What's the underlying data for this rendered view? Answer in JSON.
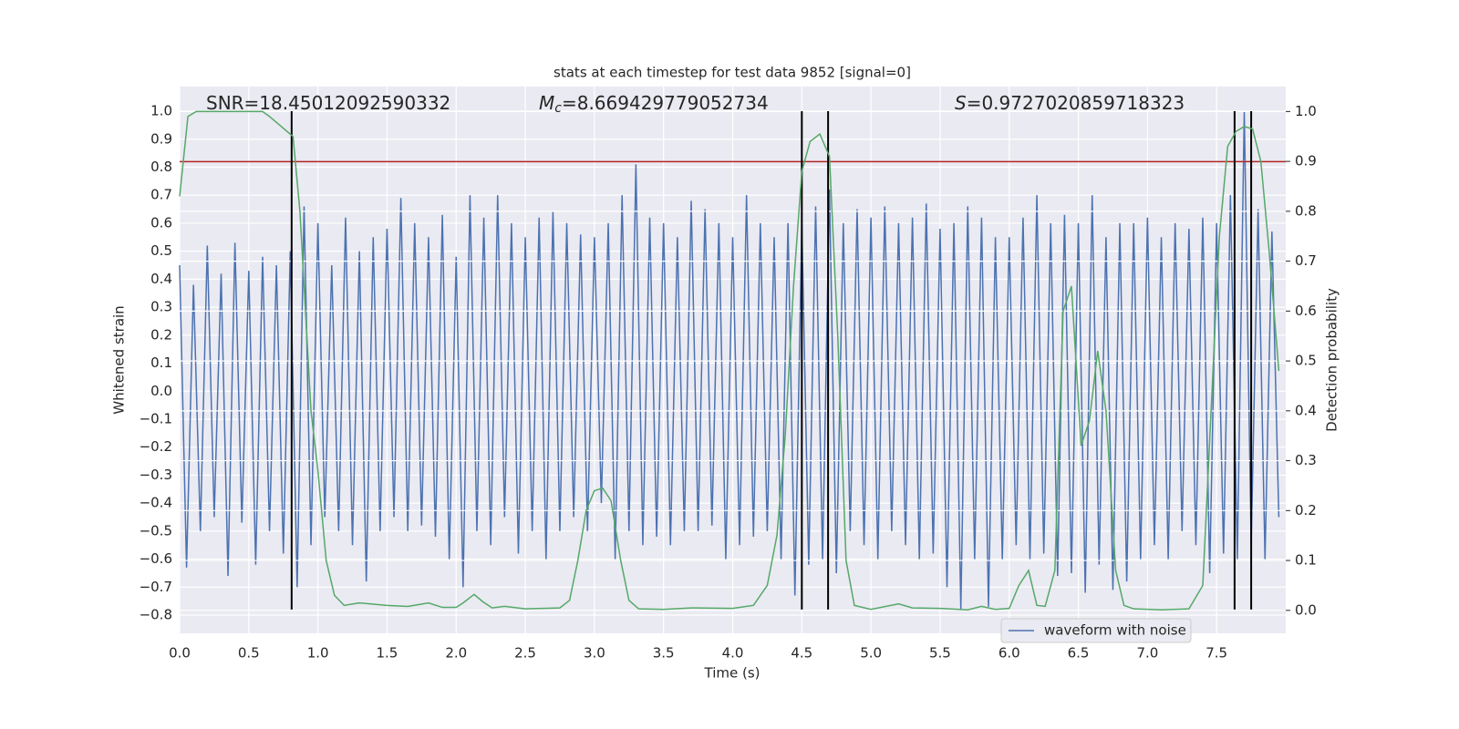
{
  "chart_data": {
    "type": "line",
    "title": "stats at each timestep for test data 9852 [signal=0]",
    "xlabel": "Time (s)",
    "ylabel": "Whitened strain",
    "y2label": "Detection probability",
    "xlim": [
      0,
      8.0
    ],
    "ylim": [
      -0.865,
      1.088
    ],
    "y2lim": [
      -0.046,
      1.05
    ],
    "xticks": [
      {
        "value": 0,
        "label": "0.0"
      },
      {
        "value": 0.5,
        "label": "0.5"
      },
      {
        "value": 1,
        "label": "1.0"
      },
      {
        "value": 1.5,
        "label": "1.5"
      },
      {
        "value": 2,
        "label": "2.0"
      },
      {
        "value": 2.5,
        "label": "2.5"
      },
      {
        "value": 3,
        "label": "3.0"
      },
      {
        "value": 3.5,
        "label": "3.5"
      },
      {
        "value": 4,
        "label": "4.0"
      },
      {
        "value": 4.5,
        "label": "4.5"
      },
      {
        "value": 5,
        "label": "5.0"
      },
      {
        "value": 5.5,
        "label": "5.5"
      },
      {
        "value": 6,
        "label": "6.0"
      },
      {
        "value": 6.5,
        "label": "6.5"
      },
      {
        "value": 7,
        "label": "7.0"
      },
      {
        "value": 7.5,
        "label": "7.5"
      }
    ],
    "yticks": [
      {
        "value": -0.8,
        "label": "−0.8"
      },
      {
        "value": -0.7,
        "label": "−0.7"
      },
      {
        "value": -0.6,
        "label": "−0.6"
      },
      {
        "value": -0.5,
        "label": "−0.5"
      },
      {
        "value": -0.4,
        "label": "−0.4"
      },
      {
        "value": -0.3,
        "label": "−0.3"
      },
      {
        "value": -0.2,
        "label": "−0.2"
      },
      {
        "value": -0.1,
        "label": "−0.1"
      },
      {
        "value": 0,
        "label": "0.0"
      },
      {
        "value": 0.1,
        "label": "0.1"
      },
      {
        "value": 0.2,
        "label": "0.2"
      },
      {
        "value": 0.3,
        "label": "0.3"
      },
      {
        "value": 0.4,
        "label": "0.4"
      },
      {
        "value": 0.5,
        "label": "0.5"
      },
      {
        "value": 0.6,
        "label": "0.6"
      },
      {
        "value": 0.7,
        "label": "0.7"
      },
      {
        "value": 0.8,
        "label": "0.8"
      },
      {
        "value": 0.9,
        "label": "0.9"
      },
      {
        "value": 1,
        "label": "1.0"
      }
    ],
    "y2ticks": [
      {
        "value": 0,
        "label": "0.0"
      },
      {
        "value": 0.1,
        "label": "0.1"
      },
      {
        "value": 0.2,
        "label": "0.2"
      },
      {
        "value": 0.3,
        "label": "0.3"
      },
      {
        "value": 0.4,
        "label": "0.4"
      },
      {
        "value": 0.5,
        "label": "0.5"
      },
      {
        "value": 0.6,
        "label": "0.6"
      },
      {
        "value": 0.7,
        "label": "0.7"
      },
      {
        "value": 0.8,
        "label": "0.8"
      },
      {
        "value": 0.9,
        "label": "0.9"
      },
      {
        "value": 1,
        "label": "1.0"
      }
    ],
    "grid": true,
    "legend": "lower right",
    "series": [
      {
        "name": "waveform with noise",
        "color": "#4c72b0",
        "x": [
          0,
          0.05,
          0.1,
          0.15,
          0.2,
          0.25,
          0.3,
          0.35,
          0.4,
          0.45,
          0.5,
          0.55,
          0.6,
          0.65,
          0.7,
          0.75,
          0.8,
          0.85,
          0.9,
          0.95,
          1,
          1.05,
          1.1,
          1.15,
          1.2,
          1.25,
          1.3,
          1.35,
          1.4,
          1.45,
          1.5,
          1.55,
          1.6,
          1.65,
          1.7,
          1.75,
          1.8,
          1.85,
          1.9,
          1.95,
          2,
          2.05,
          2.1,
          2.15,
          2.2,
          2.25,
          2.3,
          2.35,
          2.4,
          2.45,
          2.5,
          2.55,
          2.6,
          2.65,
          2.7,
          2.75,
          2.8,
          2.85,
          2.9,
          2.95,
          3,
          3.05,
          3.1,
          3.15,
          3.2,
          3.25,
          3.3,
          3.35,
          3.4,
          3.45,
          3.5,
          3.55,
          3.6,
          3.65,
          3.7,
          3.75,
          3.8,
          3.85,
          3.9,
          3.95,
          4,
          4.05,
          4.1,
          4.15,
          4.2,
          4.25,
          4.3,
          4.35,
          4.4,
          4.45,
          4.5,
          4.55,
          4.6,
          4.65,
          4.7,
          4.75,
          4.8,
          4.85,
          4.9,
          4.95,
          5,
          5.05,
          5.1,
          5.15,
          5.2,
          5.25,
          5.3,
          5.35,
          5.4,
          5.45,
          5.5,
          5.55,
          5.6,
          5.65,
          5.7,
          5.75,
          5.8,
          5.85,
          5.9,
          5.95,
          6,
          6.05,
          6.1,
          6.15,
          6.2,
          6.25,
          6.3,
          6.35,
          6.4,
          6.45,
          6.5,
          6.55,
          6.6,
          6.65,
          6.7,
          6.75,
          6.8,
          6.85,
          6.9,
          6.95,
          7,
          7.05,
          7.1,
          7.15,
          7.2,
          7.25,
          7.3,
          7.35,
          7.4,
          7.45,
          7.5,
          7.55,
          7.6,
          7.65,
          7.7,
          7.75,
          7.8,
          7.85,
          7.9,
          7.95
        ],
        "values": [
          0.45,
          -0.63,
          0.38,
          -0.5,
          0.52,
          -0.45,
          0.42,
          -0.66,
          0.53,
          -0.47,
          0.43,
          -0.62,
          0.48,
          -0.5,
          0.45,
          -0.58,
          0.5,
          -0.7,
          0.66,
          -0.55,
          0.6,
          -0.45,
          0.45,
          -0.5,
          0.62,
          -0.55,
          0.5,
          -0.68,
          0.55,
          -0.5,
          0.58,
          -0.45,
          0.69,
          -0.5,
          0.6,
          -0.48,
          0.55,
          -0.52,
          0.63,
          -0.6,
          0.48,
          -0.7,
          0.7,
          -0.5,
          0.62,
          -0.55,
          0.7,
          -0.45,
          0.6,
          -0.58,
          0.55,
          -0.5,
          0.62,
          -0.6,
          0.64,
          -0.5,
          0.6,
          -0.45,
          0.56,
          -0.5,
          0.55,
          -0.4,
          0.6,
          -0.6,
          0.7,
          -0.5,
          0.81,
          -0.55,
          0.62,
          -0.52,
          0.6,
          -0.55,
          0.55,
          -0.5,
          0.68,
          -0.5,
          0.65,
          -0.48,
          0.6,
          -0.6,
          0.55,
          -0.55,
          0.7,
          -0.52,
          0.6,
          -0.5,
          0.55,
          -0.6,
          0.6,
          -0.73,
          0.6,
          -0.62,
          0.66,
          -0.6,
          0.72,
          -0.65,
          0.6,
          -0.5,
          0.65,
          -0.55,
          0.62,
          -0.6,
          0.66,
          -0.5,
          0.6,
          -0.55,
          0.62,
          -0.6,
          0.67,
          -0.58,
          0.58,
          -0.7,
          0.6,
          -0.78,
          0.66,
          -0.6,
          0.62,
          -0.77,
          0.55,
          -0.6,
          0.55,
          -0.55,
          0.62,
          -0.6,
          0.7,
          -0.58,
          0.6,
          -0.66,
          0.63,
          -0.65,
          0.6,
          -0.72,
          0.7,
          -0.62,
          0.55,
          -0.71,
          0.6,
          -0.68,
          0.6,
          -0.6,
          0.62,
          -0.55,
          0.55,
          -0.6,
          0.6,
          -0.5,
          0.58,
          -0.55,
          0.62,
          -0.65,
          0.6,
          -0.58,
          0.7,
          -0.6,
          1.0,
          -0.55,
          0.65,
          -0.6,
          0.57,
          -0.45
        ]
      },
      {
        "color": "#55a868",
        "axis": "y2",
        "x": [
          0,
          0.06,
          0.12,
          0.6,
          0.65,
          0.82,
          0.87,
          0.95,
          1,
          1.06,
          1.12,
          1.19,
          1.3,
          1.5,
          1.65,
          1.8,
          1.9,
          2,
          2.05,
          2.13,
          2.19,
          2.26,
          2.35,
          2.5,
          2.75,
          2.82,
          2.88,
          2.94,
          3,
          3.06,
          3.12,
          3.19,
          3.25,
          3.32,
          3.5,
          3.7,
          4,
          4.15,
          4.25,
          4.32,
          4.38,
          4.44,
          4.5,
          4.56,
          4.63,
          4.7,
          4.76,
          4.82,
          4.88,
          5,
          5.2,
          5.3,
          5.5,
          5.7,
          5.8,
          5.9,
          6,
          6.07,
          6.14,
          6.2,
          6.26,
          6.33,
          6.39,
          6.45,
          6.52,
          6.58,
          6.64,
          6.7,
          6.77,
          6.83,
          6.9,
          7.1,
          7.3,
          7.4,
          7.46,
          7.52,
          7.58,
          7.64,
          7.7,
          7.76,
          7.82,
          7.88,
          7.95
        ],
        "values": [
          0.83,
          0.99,
          1,
          1,
          0.99,
          0.95,
          0.8,
          0.4,
          0.28,
          0.1,
          0.03,
          0.01,
          0.015,
          0.01,
          0.008,
          0.015,
          0.006,
          0.006,
          0.015,
          0.032,
          0.018,
          0.005,
          0.008,
          0.003,
          0.005,
          0.02,
          0.1,
          0.2,
          0.24,
          0.245,
          0.22,
          0.1,
          0.02,
          0.003,
          0.002,
          0.005,
          0.004,
          0.01,
          0.05,
          0.15,
          0.35,
          0.65,
          0.88,
          0.94,
          0.955,
          0.91,
          0.55,
          0.1,
          0.01,
          0.002,
          0.013,
          0.005,
          0.004,
          0.001,
          0.008,
          0.002,
          0.004,
          0.05,
          0.08,
          0.01,
          0.008,
          0.08,
          0.6,
          0.65,
          0.33,
          0.38,
          0.52,
          0.4,
          0.08,
          0.01,
          0.003,
          0.001,
          0.003,
          0.05,
          0.4,
          0.75,
          0.93,
          0.96,
          0.97,
          0.965,
          0.9,
          0.72,
          0.48
        ]
      }
    ],
    "vlines": {
      "x": [
        0.81,
        4.5,
        4.69,
        7.63,
        7.75
      ],
      "ymin": -0.78,
      "ymax": 1.0,
      "color": "#000000"
    },
    "hline": {
      "y": 0.82,
      "color": "#b22222"
    },
    "annotations": [
      {
        "text": "SNR=18.45012092590332"
      },
      {
        "symbol": "M",
        "sub": "c",
        "text": "=8.669429779052734"
      },
      {
        "symbol": "S",
        "text": "=0.9727020859718323"
      }
    ]
  }
}
